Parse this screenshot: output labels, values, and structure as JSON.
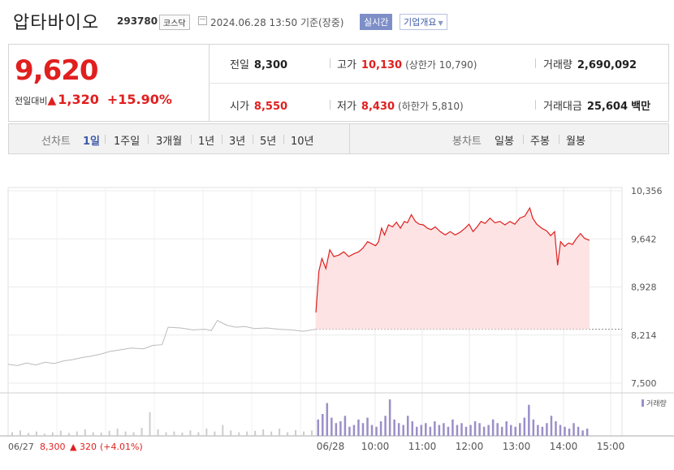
{
  "header": {
    "company_name": "압타바이오",
    "code": "293780",
    "market": "코스닥",
    "datetime": "2024.06.28 13:50",
    "basis": "기준(장중)",
    "realtime_label": "실시간",
    "corp_info_label": "기업개요",
    "icons": {
      "calendar": "calendar-icon",
      "dropdown": "caret-down-icon"
    }
  },
  "quote": {
    "price": "9,620",
    "change_label": "전일대비",
    "change_arrow": "▲",
    "change_amount": "1,320",
    "change_percent": "+15.90%",
    "prev_close": {
      "label": "전일",
      "value": "8,300"
    },
    "open": {
      "label": "시가",
      "value": "8,550"
    },
    "high": {
      "label": "고가",
      "value": "10,130",
      "limit_label": "상한가",
      "limit_value": "10,790"
    },
    "low": {
      "label": "저가",
      "value": "8,430",
      "limit_label": "하한가",
      "limit_value": "5,810"
    },
    "volume": {
      "label": "거래량",
      "value": "2,690,092"
    },
    "amount": {
      "label": "거래대금",
      "value": "25,604",
      "unit": "백만"
    }
  },
  "tabs": {
    "line_label": "선차트",
    "line_items": [
      "1일",
      "1주일",
      "3개월",
      "1년",
      "3년",
      "5년",
      "10년"
    ],
    "active": "1일",
    "candle_label": "봉차트",
    "candle_items": [
      "일봉",
      "주봉",
      "월봉"
    ]
  },
  "colors": {
    "up": "#e01f1f",
    "prev_day": "#bbbbbb",
    "volume": "#9b8fc8",
    "fill": "#fde3e3",
    "accent": "#3d5aa8"
  },
  "chart_data": {
    "type": "line",
    "price_axis": {
      "ticks": [
        10356,
        9642,
        8928,
        8214,
        7500
      ],
      "labels": [
        "10,356",
        "9,642",
        "8,928",
        "8,214",
        "7,500"
      ],
      "range": [
        7500,
        10356
      ]
    },
    "x_labels": [
      "06/28",
      "10:00",
      "11:00",
      "12:00",
      "13:00",
      "14:00",
      "15:00"
    ],
    "prev_day_footer": {
      "date": "06/27",
      "close": "8,300",
      "arrow": "▲",
      "change": "320",
      "pct": "(+4.01%)"
    },
    "volume_legend": "거래량",
    "reference_line": 8300,
    "prev_day_series": [
      [
        0.0,
        7780
      ],
      [
        0.03,
        7760
      ],
      [
        0.06,
        7800
      ],
      [
        0.09,
        7770
      ],
      [
        0.12,
        7810
      ],
      [
        0.15,
        7790
      ],
      [
        0.18,
        7830
      ],
      [
        0.21,
        7850
      ],
      [
        0.24,
        7880
      ],
      [
        0.27,
        7900
      ],
      [
        0.3,
        7930
      ],
      [
        0.33,
        7970
      ],
      [
        0.36,
        7990
      ],
      [
        0.4,
        8020
      ],
      [
        0.44,
        8010
      ],
      [
        0.47,
        8060
      ],
      [
        0.5,
        8070
      ],
      [
        0.52,
        8330
      ],
      [
        0.56,
        8320
      ],
      [
        0.6,
        8290
      ],
      [
        0.64,
        8300
      ],
      [
        0.66,
        8280
      ],
      [
        0.68,
        8430
      ],
      [
        0.71,
        8360
      ],
      [
        0.74,
        8330
      ],
      [
        0.77,
        8340
      ],
      [
        0.8,
        8310
      ],
      [
        0.84,
        8320
      ],
      [
        0.88,
        8300
      ],
      [
        0.92,
        8290
      ],
      [
        0.96,
        8270
      ],
      [
        1.0,
        8300
      ]
    ],
    "today_series": [
      [
        "09:00",
        8550
      ],
      [
        "09:03",
        9160
      ],
      [
        "09:06",
        9350
      ],
      [
        "09:10",
        9200
      ],
      [
        "09:14",
        9480
      ],
      [
        "09:18",
        9380
      ],
      [
        "09:23",
        9400
      ],
      [
        "09:28",
        9450
      ],
      [
        "09:33",
        9380
      ],
      [
        "09:38",
        9420
      ],
      [
        "09:43",
        9450
      ],
      [
        "09:47",
        9500
      ],
      [
        "09:52",
        9600
      ],
      [
        "09:56",
        9570
      ],
      [
        "10:00",
        9540
      ],
      [
        "10:03",
        9600
      ],
      [
        "10:06",
        9800
      ],
      [
        "10:09",
        9700
      ],
      [
        "10:13",
        9850
      ],
      [
        "10:17",
        9820
      ],
      [
        "10:21",
        9890
      ],
      [
        "10:25",
        9800
      ],
      [
        "10:29",
        9900
      ],
      [
        "10:32",
        9880
      ],
      [
        "10:36",
        10000
      ],
      [
        "10:40",
        9900
      ],
      [
        "10:44",
        9860
      ],
      [
        "10:48",
        9850
      ],
      [
        "10:52",
        9800
      ],
      [
        "10:56",
        9780
      ],
      [
        "11:00",
        9820
      ],
      [
        "11:05",
        9750
      ],
      [
        "11:10",
        9700
      ],
      [
        "11:15",
        9750
      ],
      [
        "11:20",
        9700
      ],
      [
        "11:25",
        9740
      ],
      [
        "11:30",
        9800
      ],
      [
        "11:34",
        9860
      ],
      [
        "11:38",
        9750
      ],
      [
        "11:42",
        9820
      ],
      [
        "11:46",
        9900
      ],
      [
        "11:50",
        9870
      ],
      [
        "11:55",
        9950
      ],
      [
        "12:00",
        9880
      ],
      [
        "12:05",
        9900
      ],
      [
        "12:10",
        9850
      ],
      [
        "12:15",
        9900
      ],
      [
        "12:20",
        9860
      ],
      [
        "12:25",
        9950
      ],
      [
        "12:30",
        9980
      ],
      [
        "12:35",
        10100
      ],
      [
        "12:38",
        9950
      ],
      [
        "12:42",
        9860
      ],
      [
        "12:47",
        9800
      ],
      [
        "12:52",
        9760
      ],
      [
        "12:56",
        9690
      ],
      [
        "13:00",
        9750
      ],
      [
        "13:03",
        9250
      ],
      [
        "13:06",
        9600
      ],
      [
        "13:10",
        9530
      ],
      [
        "13:14",
        9580
      ],
      [
        "13:18",
        9560
      ],
      [
        "13:22",
        9650
      ],
      [
        "13:26",
        9720
      ],
      [
        "13:30",
        9650
      ],
      [
        "13:35",
        9620
      ]
    ],
    "prev_day_volume": [
      0.1,
      0.15,
      0.08,
      0.12,
      0.06,
      0.1,
      0.14,
      0.08,
      0.12,
      0.18,
      0.1,
      0.09,
      0.14,
      0.2,
      0.12,
      0.1,
      0.22,
      0.65,
      0.18,
      0.1,
      0.12,
      0.09,
      0.15,
      0.1,
      0.2,
      0.12,
      0.3,
      0.15,
      0.1,
      0.12,
      0.14,
      0.18,
      0.12,
      0.2,
      0.1,
      0.16,
      0.12,
      0.15
    ],
    "today_volume": [
      0.45,
      0.6,
      0.9,
      0.5,
      0.35,
      0.4,
      0.55,
      0.25,
      0.3,
      0.45,
      0.35,
      0.5,
      0.3,
      0.25,
      0.4,
      0.55,
      1.0,
      0.45,
      0.35,
      0.3,
      0.55,
      0.4,
      0.25,
      0.3,
      0.35,
      0.25,
      0.4,
      0.3,
      0.35,
      0.25,
      0.45,
      0.3,
      0.35,
      0.25,
      0.3,
      0.4,
      0.35,
      0.25,
      0.3,
      0.45,
      0.35,
      0.25,
      0.4,
      0.3,
      0.25,
      0.35,
      0.5,
      0.85,
      0.45,
      0.3,
      0.25,
      0.35,
      0.55,
      0.4,
      0.3,
      0.25,
      0.2,
      0.35,
      0.25,
      0.15,
      0.2
    ]
  }
}
